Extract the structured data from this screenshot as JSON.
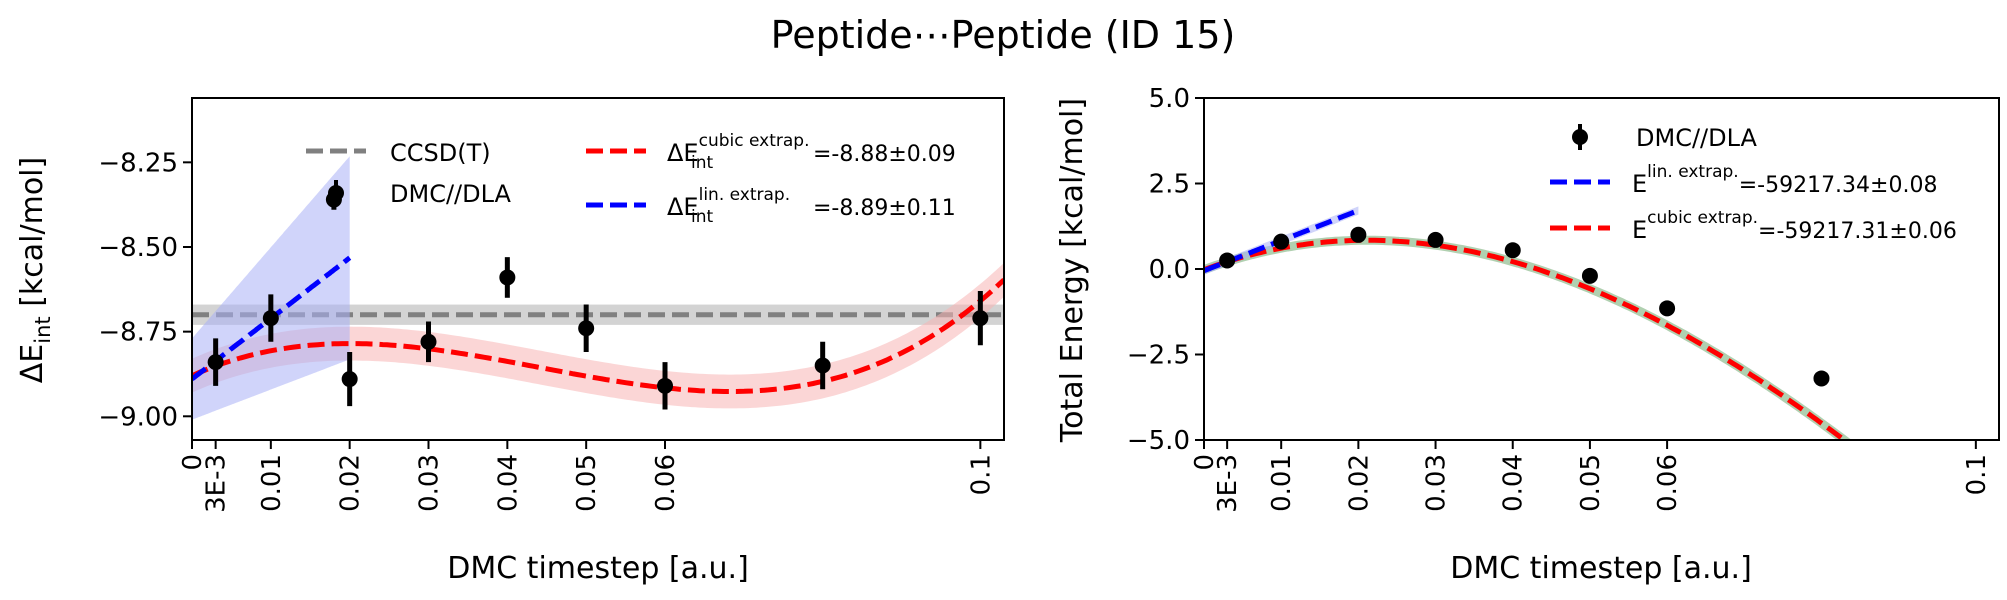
{
  "figure": {
    "title": "Peptide⋯Peptide (ID 15)"
  },
  "colors": {
    "ccsd": "#808080",
    "ccsd_band": "#c8c8c8",
    "dmc": "#000000",
    "linear": "#0000ff",
    "linear_band": "#aab0f5",
    "cubic": "#ff0000",
    "cubic_band": "#f7b4b4",
    "exact": "#b0d0b0"
  },
  "chart_data": [
    {
      "type": "scatter",
      "xlabel": "DMC timestep [a.u.]",
      "ylabel_main": "ΔE",
      "ylabel_sub": "int",
      "ylabel_unit": " [kcal/mol]",
      "xlim": [
        0,
        0.103
      ],
      "ylim": [
        -9.07,
        -8.06
      ],
      "xticks": [
        {
          "value": 0,
          "label": "0"
        },
        {
          "value": 0.003,
          "label": "3E-3"
        },
        {
          "value": 0.01,
          "label": "0.01"
        },
        {
          "value": 0.02,
          "label": "0.02"
        },
        {
          "value": 0.03,
          "label": "0.03"
        },
        {
          "value": 0.04,
          "label": "0.04"
        },
        {
          "value": 0.05,
          "label": "0.05"
        },
        {
          "value": 0.06,
          "label": "0.06"
        },
        {
          "value": 0.1,
          "label": "0.1"
        }
      ],
      "yticks": [
        {
          "value": -8.25,
          "label": "−8.25"
        },
        {
          "value": -8.5,
          "label": "−8.50"
        },
        {
          "value": -8.75,
          "label": "−8.75"
        },
        {
          "value": -9.0,
          "label": "−9.00"
        }
      ],
      "reference": {
        "name": "CCSD(T)",
        "value": -8.7,
        "band": 0.03
      },
      "dmc": {
        "name": "DMC//DLA",
        "x": [
          0.003,
          0.01,
          0.02,
          0.018,
          0.03,
          0.04,
          0.05,
          0.06,
          0.08,
          0.1
        ],
        "y": [
          -8.84,
          -8.71,
          -8.89,
          -8.36,
          -8.78,
          -8.59,
          -8.74,
          -8.91,
          -8.85,
          -8.71
        ],
        "err": [
          0.07,
          0.07,
          0.08,
          0.03,
          0.06,
          0.06,
          0.07,
          0.07,
          0.07,
          0.08
        ]
      },
      "cubic": {
        "label_main": "ΔE",
        "label_sup": "cubic extrap.",
        "label_sub": "int",
        "label_value": "=-8.88±0.09",
        "coeffs": [
          -8.88,
          10.46,
          -337.0,
          2545.0
        ],
        "x_range": [
          0,
          0.103
        ],
        "band": 0.05
      },
      "linear": {
        "label_main": "ΔE",
        "label_sup": "lin. extrap.",
        "label_sub": "int",
        "label_value": "=-8.89±0.11",
        "coeffs": [
          -8.89,
          17.9
        ],
        "x_range": [
          0,
          0.02
        ],
        "band_start": 0.12,
        "band_end": 0.3
      }
    },
    {
      "type": "scatter",
      "xlabel": "DMC timestep [a.u.]",
      "ylabel": "Total Energy [kcal/mol]",
      "xlim": [
        0,
        0.103
      ],
      "ylim": [
        -5.0,
        5.0
      ],
      "xticks": [
        {
          "value": 0,
          "label": "0"
        },
        {
          "value": 0.003,
          "label": "3E-3"
        },
        {
          "value": 0.01,
          "label": "0.01"
        },
        {
          "value": 0.02,
          "label": "0.02"
        },
        {
          "value": 0.03,
          "label": "0.03"
        },
        {
          "value": 0.04,
          "label": "0.04"
        },
        {
          "value": 0.05,
          "label": "0.05"
        },
        {
          "value": 0.06,
          "label": "0.06"
        },
        {
          "value": 0.1,
          "label": "0.1"
        }
      ],
      "yticks": [
        {
          "value": 5.0,
          "label": "5.0"
        },
        {
          "value": 2.5,
          "label": "2.5"
        },
        {
          "value": 0.0,
          "label": "0.0"
        },
        {
          "value": -2.5,
          "label": "−2.5"
        },
        {
          "value": -5.0,
          "label": "−5.0"
        }
      ],
      "dmc": {
        "name": "DMC//DLA",
        "x": [
          0.003,
          0.01,
          0.02,
          0.03,
          0.04,
          0.05,
          0.06,
          0.08
        ],
        "y": [
          0.25,
          0.8,
          1.0,
          0.85,
          0.55,
          -0.2,
          -1.15,
          -3.2
        ],
        "err": [
          0.1,
          0.1,
          0.1,
          0.1,
          0.1,
          0.1,
          0.1,
          0.1
        ]
      },
      "linear": {
        "label_main": "E",
        "label_sup": "lin. extrap.",
        "label_value": "=-59217.34±0.08",
        "coeffs": [
          -0.05,
          88.0
        ],
        "x_range": [
          0,
          0.02
        ],
        "band": 0.12
      },
      "cubic": {
        "label_main": "E",
        "label_sup": "cubic extrap.",
        "label_value": "=-59217.31±0.06",
        "coeffs": [
          -0.02,
          83.9,
          -2150.0,
          5000.0
        ],
        "x_range": [
          0,
          0.103
        ]
      }
    }
  ]
}
